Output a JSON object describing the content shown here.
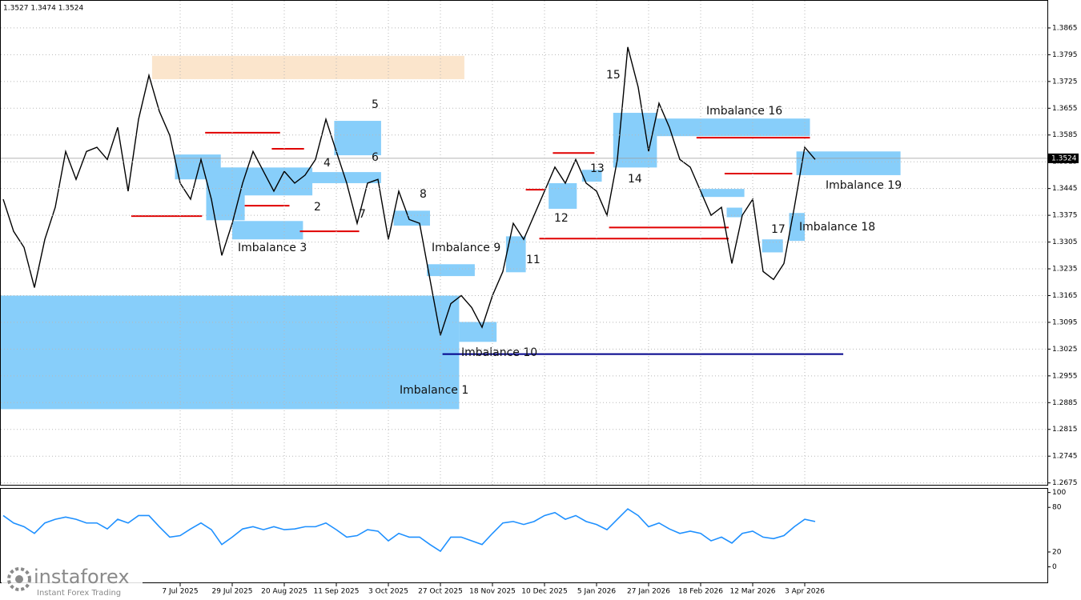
{
  "chart_data": [
    {
      "type": "line",
      "ohlc": "1.3527 1.3474 1.3524",
      "color": "#000000",
      "categories": [
        null,
        null,
        null,
        null,
        null,
        null,
        null,
        null,
        null,
        null,
        null,
        null,
        null,
        null,
        null,
        null,
        null,
        "7 Jul 2025",
        null,
        null,
        null,
        null,
        "29 Jul 2025",
        null,
        null,
        null,
        null,
        "20 Aug 2025",
        null,
        null,
        null,
        null,
        "11 Sep 2025",
        null,
        null,
        null,
        null,
        "3 Oct 2025",
        null,
        null,
        null,
        null,
        "27 Oct 2025",
        null,
        null,
        null,
        null,
        "18 Nov 2025",
        null,
        null,
        null,
        null,
        "10 Dec 2025",
        null,
        null,
        null,
        null,
        "5 Jan 2026",
        null,
        null,
        null,
        null,
        "27 Jan 2026",
        null,
        null,
        null,
        null,
        "18 Feb 2026",
        null,
        null,
        null,
        null,
        "12 Mar 2026",
        null,
        null,
        null,
        null,
        "3 Apr 2026",
        null
      ],
      "values": [
        1.3417,
        1.3333,
        1.3291,
        1.3186,
        1.3312,
        1.3396,
        1.3542,
        1.3469,
        1.3542,
        1.3553,
        1.3521,
        1.3605,
        1.3438,
        1.3626,
        1.3741,
        1.3647,
        1.3584,
        1.3459,
        1.3417,
        1.3521,
        1.3417,
        1.327,
        1.3354,
        1.3459,
        1.3542,
        1.349,
        1.3438,
        1.349,
        1.3459,
        1.348,
        1.3521,
        1.3626,
        1.3542,
        1.3459,
        1.3354,
        1.3459,
        1.3469,
        1.3312,
        1.3438,
        1.3364,
        1.3354,
        1.3207,
        1.3061,
        1.3144,
        1.3165,
        1.3134,
        1.3082,
        1.3165,
        1.3228,
        1.3354,
        1.3312,
        1.3375,
        1.3438,
        1.3501,
        1.3459,
        1.3521,
        1.3459,
        1.3438,
        1.3375,
        1.3521,
        1.3815,
        1.371,
        1.3542,
        1.3668,
        1.3605,
        1.3521,
        1.3501,
        1.3438,
        1.3375,
        1.3396,
        1.3249,
        1.3375,
        1.3417,
        1.3228,
        1.3207,
        1.3249,
        1.3396,
        1.3553,
        1.3521
      ],
      "last_price": 1.3524,
      "ylim": [
        1.2668,
        1.3936
      ],
      "yticks": [
        1.3865,
        1.3795,
        1.3725,
        1.3655,
        1.3585,
        1.3515,
        1.3445,
        1.3375,
        1.3305,
        1.3235,
        1.3165,
        1.3095,
        1.3025,
        1.2955,
        1.2885,
        1.2815,
        1.2745,
        1.2675
      ],
      "grid": true,
      "zone_color": "#87cefa",
      "zones": [
        {
          "name": "Imbalance 1",
          "x": [
            -0.3,
            43.8
          ],
          "y": [
            1.2868,
            1.3165
          ]
        },
        {
          "x": [
            14.3,
            44.3
          ],
          "y": [
            1.3731,
            1.3792
          ],
          "color": "#fbe5cc"
        },
        {
          "x": [
            16.5,
            20.9
          ],
          "y": [
            1.3469,
            1.3534
          ]
        },
        {
          "x": [
            19.5,
            23.2
          ],
          "y": [
            1.3362,
            1.35
          ]
        },
        {
          "x": [
            21,
            29.7
          ],
          "y": [
            1.3427,
            1.35
          ]
        },
        {
          "x": [
            22,
            28.8
          ],
          "y": [
            1.3312,
            1.336
          ]
        },
        {
          "x": [
            31.8,
            36.3
          ],
          "y": [
            1.3532,
            1.3622
          ]
        },
        {
          "x": [
            29.5,
            36.3
          ],
          "y": [
            1.3459,
            1.3488
          ]
        },
        {
          "x": [
            37.5,
            41
          ],
          "y": [
            1.3348,
            1.3387
          ]
        },
        {
          "x": [
            40.7,
            45.3
          ],
          "y": [
            1.3216,
            1.3247
          ]
        },
        {
          "x": [
            43.8,
            47.4
          ],
          "y": [
            1.3044,
            1.3096
          ]
        },
        {
          "x": [
            48.3,
            50.2
          ],
          "y": [
            1.3226,
            1.332
          ]
        },
        {
          "x": [
            52.4,
            55.1
          ],
          "y": [
            1.3392,
            1.3459
          ]
        },
        {
          "x": [
            55.6,
            57.5
          ],
          "y": [
            1.3463,
            1.3494
          ]
        },
        {
          "x": [
            58.6,
            62.8
          ],
          "y": [
            1.35,
            1.3643
          ]
        },
        {
          "x": [
            62.8,
            77.5
          ],
          "y": [
            1.3582,
            1.3628
          ]
        },
        {
          "x": [
            67,
            71.2
          ],
          "y": [
            1.3423,
            1.3444
          ]
        },
        {
          "x": [
            69.5,
            71
          ],
          "y": [
            1.337,
            1.3395
          ]
        },
        {
          "x": [
            72.9,
            74.9
          ],
          "y": [
            1.3278,
            1.3312
          ]
        },
        {
          "x": [
            75.5,
            77
          ],
          "y": [
            1.3308,
            1.3381
          ]
        },
        {
          "x": [
            76.2,
            86.2
          ],
          "y": [
            1.348,
            1.3542
          ]
        }
      ],
      "levels": [
        {
          "x": [
            12.3,
            19.1
          ],
          "value": 1.3373,
          "color": "#e00000"
        },
        {
          "x": [
            19.4,
            26.6
          ],
          "value": 1.3591,
          "color": "#e00000"
        },
        {
          "x": [
            23.2,
            27.5
          ],
          "value": 1.34,
          "color": "#e00000"
        },
        {
          "x": [
            25.8,
            28.9
          ],
          "value": 1.3549,
          "color": "#e00000"
        },
        {
          "x": [
            28.5,
            34.2
          ],
          "value": 1.3333,
          "color": "#e00000"
        },
        {
          "x": [
            50.2,
            52
          ],
          "value": 1.3442,
          "color": "#e00000"
        },
        {
          "x": [
            52.8,
            56.8
          ],
          "value": 1.3538,
          "color": "#e00000"
        },
        {
          "x": [
            51.5,
            69.7
          ],
          "value": 1.3314,
          "color": "#e00000"
        },
        {
          "x": [
            58.2,
            69.7
          ],
          "value": 1.3343,
          "color": "#e00000"
        },
        {
          "x": [
            66.6,
            77.5
          ],
          "value": 1.3578,
          "color": "#e00000"
        },
        {
          "x": [
            69.3,
            75.8
          ],
          "value": 1.3484,
          "color": "#e00000"
        },
        {
          "x": [
            42.2,
            80.7
          ],
          "value": 1.3012,
          "color": "#00008b"
        }
      ],
      "annotations": [
        "Imbalance 1",
        "Imbalance 3",
        "2",
        "4",
        "5",
        "6",
        "7",
        "8",
        "Imbalance 9",
        "Imbalance 10",
        "11",
        "12",
        "13",
        "14",
        "15",
        "Imbalance 16",
        "17",
        "Imbalance 18",
        "Imbalance 19"
      ]
    },
    {
      "type": "line",
      "color": "#1e90ff",
      "values": [
        69,
        59,
        54,
        45,
        59,
        64,
        67,
        64,
        59,
        59,
        51,
        64,
        59,
        69,
        69,
        54,
        40,
        42,
        51,
        59,
        50,
        30,
        40,
        51,
        54,
        50,
        54,
        50,
        51,
        54,
        54,
        59,
        50,
        40,
        42,
        50,
        48,
        35,
        45,
        40,
        40,
        30,
        21,
        40,
        40,
        35,
        30,
        45,
        59,
        61,
        57,
        61,
        69,
        73,
        64,
        69,
        61,
        57,
        50,
        64,
        78,
        69,
        54,
        59,
        51,
        45,
        48,
        45,
        35,
        40,
        32,
        45,
        48,
        40,
        38,
        42,
        54,
        64,
        61
      ],
      "ylim": [
        -22,
        105
      ],
      "yticks": [
        100,
        80,
        20,
        0
      ]
    }
  ],
  "watermark": {
    "brand": "instaforex",
    "tagline": "Instant Forex Trading"
  }
}
